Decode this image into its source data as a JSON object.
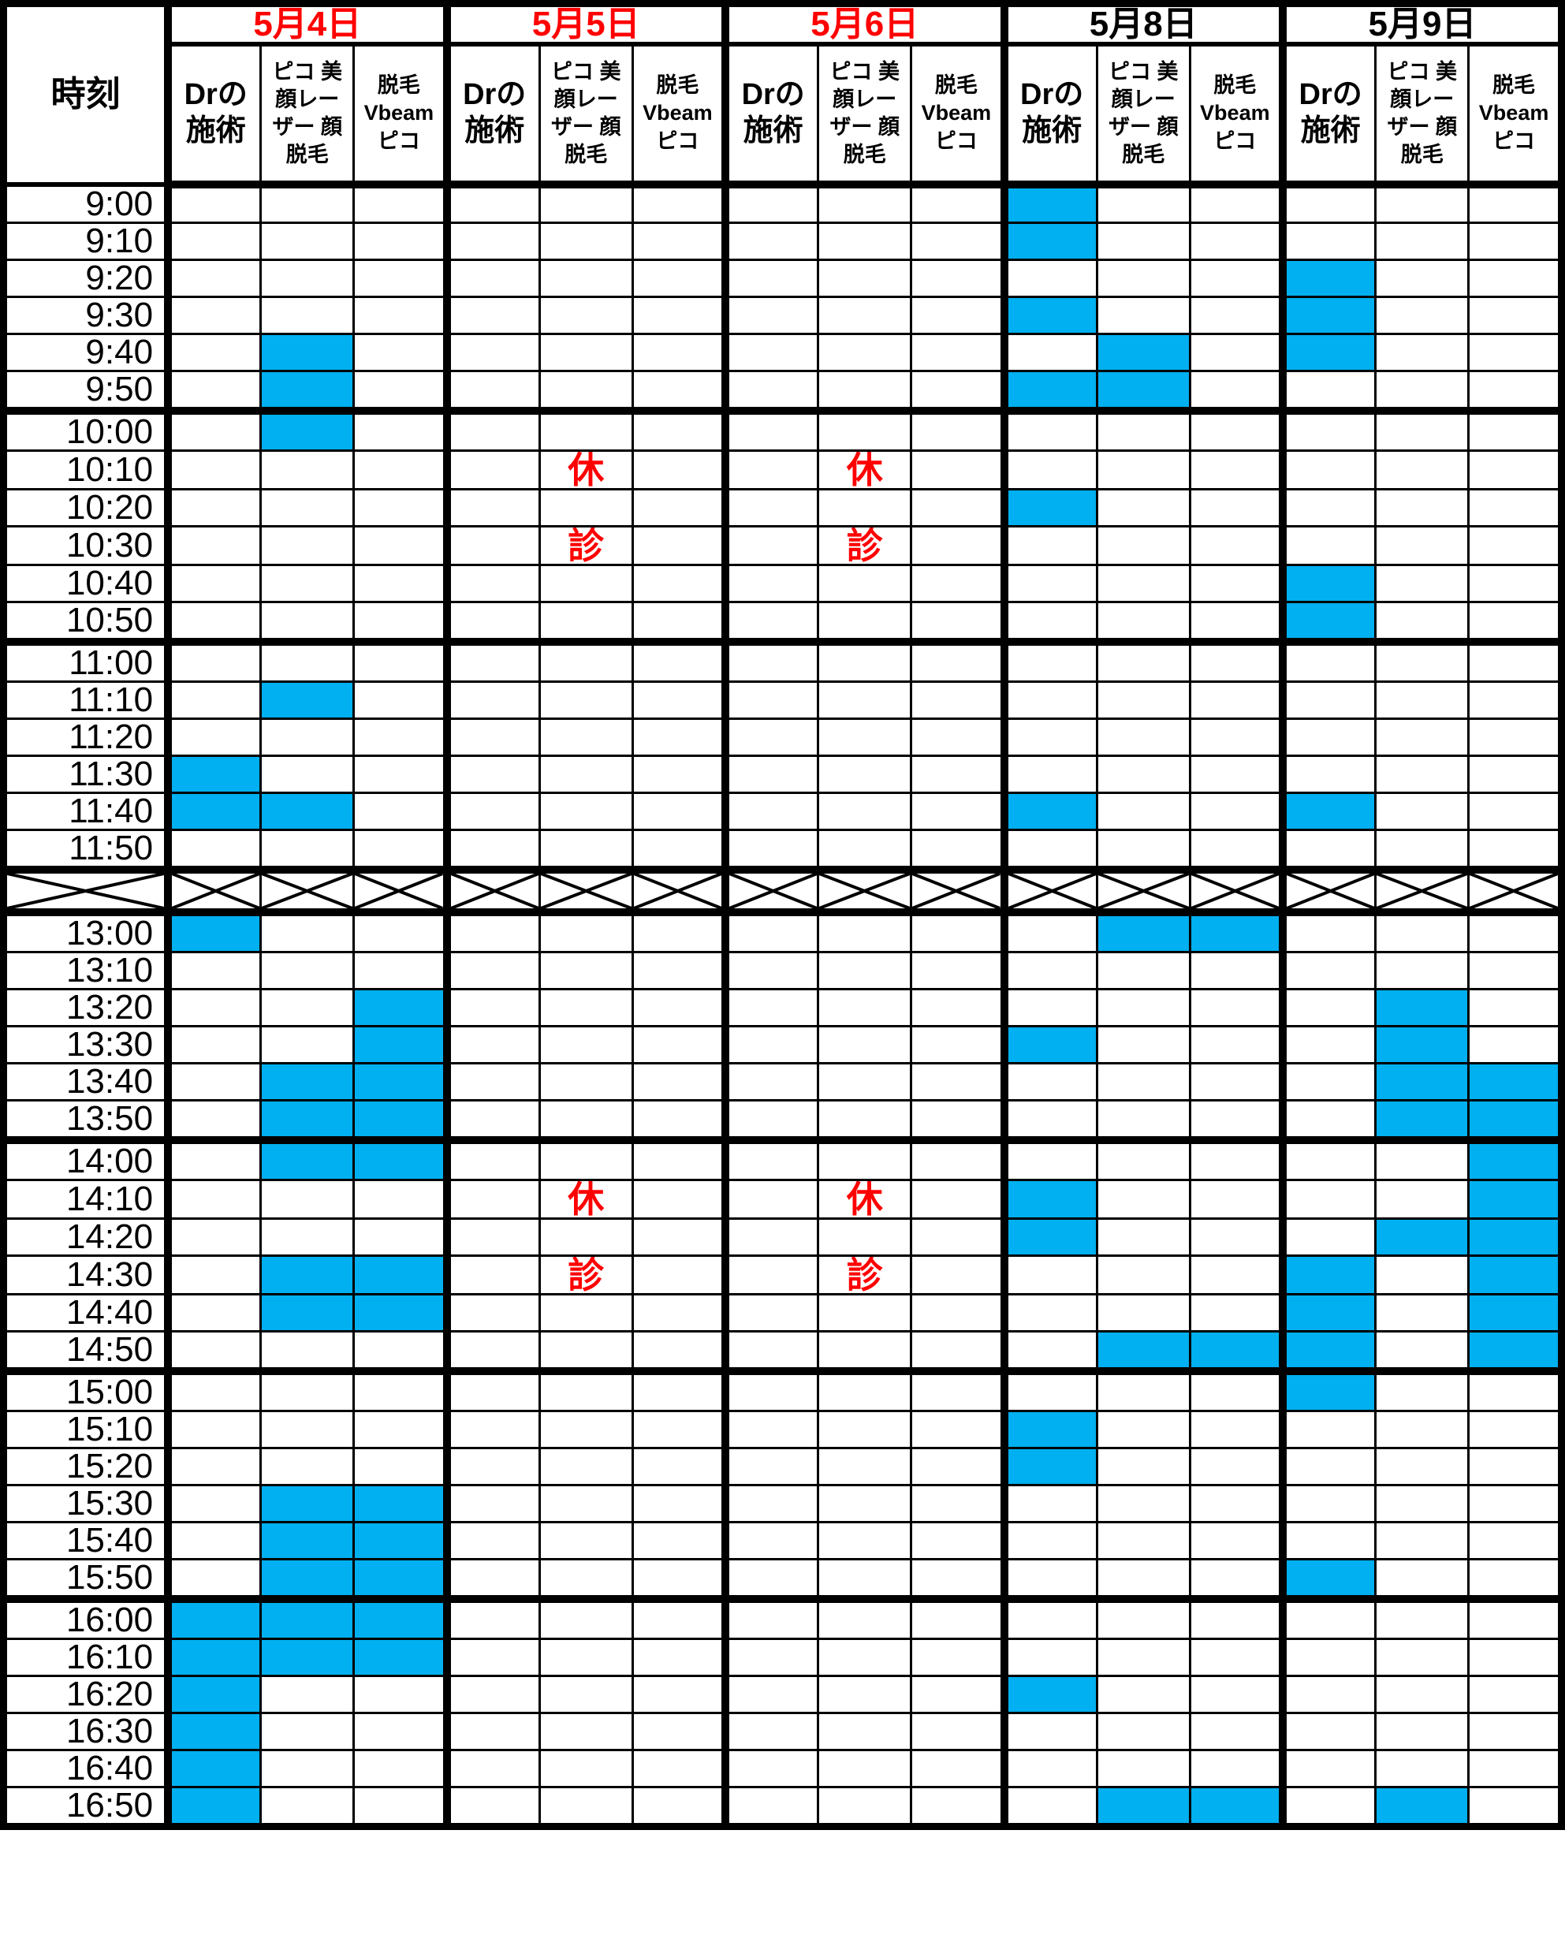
{
  "colors": {
    "filled_slot": "#00B0F0",
    "closed_text": "#FF0000",
    "date_highlight": "#FF0000",
    "grid": "#000000",
    "background": "#FFFFFF"
  },
  "header": {
    "time_label": "時刻",
    "groups": [
      {
        "date": "5月4日",
        "color": "red"
      },
      {
        "date": "5月5日",
        "color": "red"
      },
      {
        "date": "5月6日",
        "color": "red"
      },
      {
        "date": "5月8日",
        "color": "black"
      },
      {
        "date": "5月9日",
        "color": "black"
      }
    ],
    "sub_columns": [
      "Drの施術",
      "ピコ 美顔レーザー 顔脱毛",
      "脱毛 Vbeam ピコ"
    ]
  },
  "layout": {
    "hour_start_times": [
      "10:00",
      "11:00",
      "13:00",
      "14:00",
      "15:00",
      "16:00"
    ]
  },
  "rows": [
    {
      "time": "9:00",
      "filled": [
        9
      ]
    },
    {
      "time": "9:10",
      "filled": [
        9
      ]
    },
    {
      "time": "9:20",
      "filled": [
        12
      ]
    },
    {
      "time": "9:30",
      "filled": [
        9,
        12
      ]
    },
    {
      "time": "9:40",
      "filled": [
        1,
        10,
        12
      ]
    },
    {
      "time": "9:50",
      "filled": [
        1,
        9,
        10
      ]
    },
    {
      "time": "10:00",
      "filled": [
        1
      ]
    },
    {
      "time": "10:10",
      "filled": [],
      "marks": {
        "4": "休",
        "7": "休"
      }
    },
    {
      "time": "10:20",
      "filled": [
        9
      ]
    },
    {
      "time": "10:30",
      "filled": [],
      "marks": {
        "4": "診",
        "7": "診"
      }
    },
    {
      "time": "10:40",
      "filled": [
        12
      ]
    },
    {
      "time": "10:50",
      "filled": [
        12
      ]
    },
    {
      "time": "11:00",
      "filled": []
    },
    {
      "time": "11:10",
      "filled": [
        1
      ]
    },
    {
      "time": "11:20",
      "filled": []
    },
    {
      "time": "11:30",
      "filled": [
        0
      ]
    },
    {
      "time": "11:40",
      "filled": [
        0,
        1,
        9,
        12
      ]
    },
    {
      "time": "11:50",
      "filled": []
    },
    {
      "break": true
    },
    {
      "time": "13:00",
      "filled": [
        0,
        10,
        11
      ]
    },
    {
      "time": "13:10",
      "filled": []
    },
    {
      "time": "13:20",
      "filled": [
        2,
        13
      ]
    },
    {
      "time": "13:30",
      "filled": [
        2,
        9,
        13
      ]
    },
    {
      "time": "13:40",
      "filled": [
        1,
        2,
        13,
        14
      ]
    },
    {
      "time": "13:50",
      "filled": [
        1,
        2,
        13,
        14
      ]
    },
    {
      "time": "14:00",
      "filled": [
        1,
        2,
        14
      ]
    },
    {
      "time": "14:10",
      "filled": [
        9,
        14
      ],
      "marks": {
        "4": "休",
        "7": "休"
      }
    },
    {
      "time": "14:20",
      "filled": [
        9,
        13,
        14
      ]
    },
    {
      "time": "14:30",
      "filled": [
        1,
        2,
        12,
        14
      ],
      "marks": {
        "4": "診",
        "7": "診"
      }
    },
    {
      "time": "14:40",
      "filled": [
        1,
        2,
        12,
        14
      ]
    },
    {
      "time": "14:50",
      "filled": [
        10,
        11,
        12,
        14
      ]
    },
    {
      "time": "15:00",
      "filled": [
        12
      ]
    },
    {
      "time": "15:10",
      "filled": [
        9
      ]
    },
    {
      "time": "15:20",
      "filled": [
        9
      ]
    },
    {
      "time": "15:30",
      "filled": [
        1,
        2
      ]
    },
    {
      "time": "15:40",
      "filled": [
        1,
        2
      ]
    },
    {
      "time": "15:50",
      "filled": [
        1,
        2,
        12
      ]
    },
    {
      "time": "16:00",
      "filled": [
        0,
        1,
        2
      ]
    },
    {
      "time": "16:10",
      "filled": [
        0,
        1,
        2
      ]
    },
    {
      "time": "16:20",
      "filled": [
        0,
        9
      ]
    },
    {
      "time": "16:30",
      "filled": [
        0
      ]
    },
    {
      "time": "16:40",
      "filled": [
        0
      ]
    },
    {
      "time": "16:50",
      "filled": [
        0,
        10,
        11,
        13
      ]
    }
  ]
}
